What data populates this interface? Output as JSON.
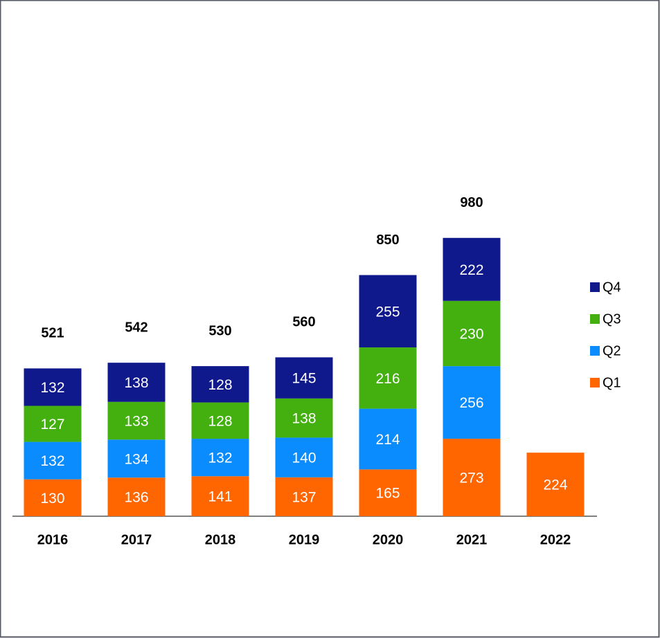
{
  "chart_data": {
    "type": "stacked_bar",
    "categories": [
      "2016",
      "2017",
      "2018",
      "2019",
      "2020",
      "2021",
      "2022"
    ],
    "series": [
      {
        "name": "Q1",
        "color": "#ff6600",
        "values": [
          130,
          136,
          141,
          137,
          165,
          273,
          224
        ]
      },
      {
        "name": "Q2",
        "color": "#0a8cff",
        "values": [
          132,
          134,
          132,
          140,
          214,
          256,
          null
        ]
      },
      {
        "name": "Q3",
        "color": "#44b010",
        "values": [
          127,
          133,
          128,
          138,
          216,
          230,
          null
        ]
      },
      {
        "name": "Q4",
        "color": "#10198c",
        "values": [
          132,
          138,
          128,
          145,
          255,
          222,
          null
        ]
      }
    ],
    "totals": [
      521,
      542,
      530,
      560,
      850,
      980,
      null
    ]
  }
}
